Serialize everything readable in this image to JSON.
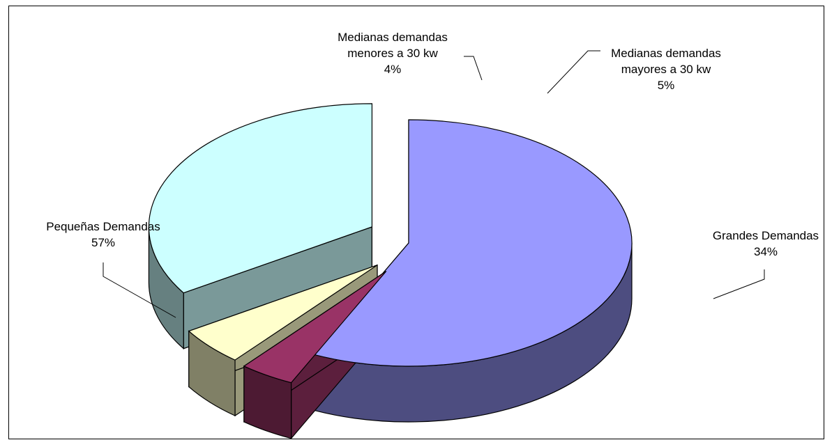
{
  "chart_data": {
    "type": "pie",
    "style": "3d-exploded",
    "title": "",
    "categories": [
      "Pequeñas Demandas",
      "Medianas demandas menores a 30 kw",
      "Medianas demandas mayores a 30 kw",
      "Grandes Demandas"
    ],
    "values": [
      57,
      4,
      5,
      34
    ],
    "value_labels": [
      "57%",
      "4%",
      "5%",
      "34%"
    ],
    "label_lines": [
      [
        "Pequeñas Demandas",
        "57%"
      ],
      [
        "Medianas demandas",
        "menores a 30 kw",
        "4%"
      ],
      [
        "Medianas demandas",
        "mayores a 30 kw",
        "5%"
      ],
      [
        "Grandes Demandas",
        "34%"
      ]
    ],
    "colors": [
      "#9999ff",
      "#993366",
      "#ffffcc",
      "#ccffff"
    ],
    "legend": "none"
  }
}
